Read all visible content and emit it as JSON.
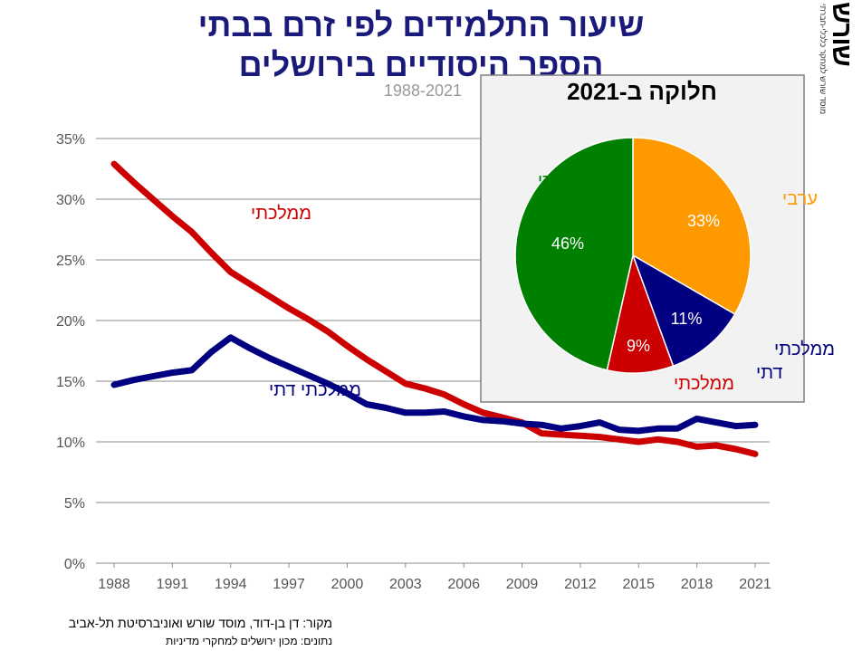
{
  "title_lines": [
    "שיעור התלמידים לפי זרם בבתי",
    "הספר היסודיים בירושלים"
  ],
  "brand": {
    "logo_text": "שורש",
    "tagline": "מוסד שורש למחקר כלכלי-חברתי"
  },
  "source": {
    "line1": "מקור:  דן בן-דוד, מוסד שורש ואוניברסיטת תל-אביב",
    "line2": "נתונים: מכון ירושלים למחקרי מדיניות"
  },
  "colors": {
    "mamlachti": "#cc0000",
    "mamlachti_dati": "#000080",
    "haredi": "#008000",
    "aravi": "#ff9900",
    "title": "#1a1a7a"
  },
  "chart_data": [
    {
      "type": "line",
      "subtitle": "1988-2021",
      "x_ticks": [
        "1988",
        "1991",
        "1994",
        "1997",
        "2000",
        "2003",
        "2006",
        "2009",
        "2012",
        "2015",
        "2018",
        "2021"
      ],
      "y_ticks": [
        "0%",
        "5%",
        "10%",
        "15%",
        "20%",
        "25%",
        "30%",
        "35%"
      ],
      "xlim": [
        1988,
        2021
      ],
      "ylim": [
        0,
        35
      ],
      "grid": "horizontal",
      "series": [
        {
          "name": "ממלכתי",
          "x": [
            1988,
            1989,
            1990,
            1991,
            1992,
            1993,
            1994,
            1995,
            1996,
            1997,
            1998,
            1999,
            2000,
            2001,
            2002,
            2003,
            2004,
            2005,
            2006,
            2007,
            2008,
            2009,
            2010,
            2011,
            2012,
            2013,
            2014,
            2015,
            2016,
            2017,
            2018,
            2019,
            2020,
            2021
          ],
          "y": [
            32.9,
            31.4,
            30.0,
            28.6,
            27.3,
            25.6,
            24.0,
            23.0,
            22.0,
            21.0,
            20.1,
            19.1,
            17.9,
            16.8,
            15.8,
            14.8,
            14.4,
            13.9,
            13.1,
            12.4,
            12.0,
            11.6,
            10.7,
            10.6,
            10.5,
            10.4,
            10.2,
            10.0,
            10.2,
            10.0,
            9.6,
            9.7,
            9.4,
            9.0
          ]
        },
        {
          "name": "ממלכתי דתי",
          "x": [
            1988,
            1989,
            1990,
            1991,
            1992,
            1993,
            1994,
            1995,
            1996,
            1997,
            1998,
            1999,
            2000,
            2001,
            2002,
            2003,
            2004,
            2005,
            2006,
            2007,
            2008,
            2009,
            2010,
            2011,
            2012,
            2013,
            2014,
            2015,
            2016,
            2017,
            2018,
            2019,
            2020,
            2021
          ],
          "y": [
            14.7,
            15.1,
            15.4,
            15.7,
            15.9,
            17.4,
            18.6,
            17.7,
            16.9,
            16.2,
            15.5,
            14.8,
            14.0,
            13.1,
            12.8,
            12.4,
            12.4,
            12.5,
            12.1,
            11.8,
            11.7,
            11.5,
            11.4,
            11.1,
            11.3,
            11.6,
            11.0,
            10.9,
            11.1,
            11.1,
            11.9,
            11.6,
            11.3,
            11.4
          ]
        }
      ]
    },
    {
      "type": "pie",
      "title": "חלוקה ב-2021",
      "slices": [
        {
          "label": "ערבי",
          "value": 33,
          "value_label": "33%",
          "color": "#ff9900"
        },
        {
          "label": "ממלכתי דתי",
          "value": 11,
          "value_label": "11%",
          "color": "#000080"
        },
        {
          "label": "ממלכתי",
          "value": 9,
          "value_label": "9%",
          "color": "#cc0000"
        },
        {
          "label": "חרדי",
          "value": 46,
          "value_label": "46%",
          "color": "#008000"
        }
      ]
    }
  ]
}
